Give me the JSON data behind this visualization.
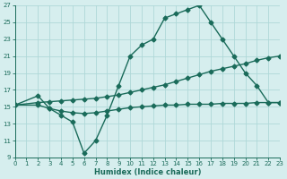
{
  "line1_x": [
    0,
    2,
    3,
    4,
    5,
    6,
    7,
    8,
    9,
    10,
    11,
    12,
    13,
    14,
    15,
    16,
    17,
    18,
    19,
    20,
    21,
    22,
    23
  ],
  "line1_y": [
    15.2,
    16.3,
    14.8,
    14.0,
    13.2,
    9.5,
    11.0,
    14.0,
    17.5,
    21.0,
    22.3,
    23.0,
    25.5,
    26.0,
    26.5,
    27.0,
    25.0,
    23.0,
    21.0,
    19.0,
    17.5,
    15.5,
    15.5
  ],
  "line2_x": [
    0,
    2,
    3,
    4,
    5,
    6,
    7,
    8,
    9,
    10,
    11,
    12,
    13,
    14,
    15,
    16,
    17,
    18,
    19,
    20,
    21,
    22,
    23
  ],
  "line2_y": [
    15.2,
    15.5,
    15.6,
    15.7,
    15.8,
    15.9,
    16.0,
    16.2,
    16.4,
    16.7,
    17.0,
    17.3,
    17.6,
    18.0,
    18.4,
    18.8,
    19.2,
    19.5,
    19.8,
    20.1,
    20.5,
    20.8,
    21.0
  ],
  "line3_x": [
    0,
    2,
    3,
    4,
    5,
    6,
    7,
    8,
    9,
    10,
    11,
    12,
    13,
    14,
    15,
    16,
    17,
    18,
    19,
    20,
    21,
    22,
    23
  ],
  "line3_y": [
    15.2,
    15.2,
    14.8,
    14.5,
    14.3,
    14.2,
    14.3,
    14.5,
    14.7,
    14.9,
    15.0,
    15.1,
    15.2,
    15.2,
    15.3,
    15.3,
    15.3,
    15.4,
    15.4,
    15.4,
    15.5,
    15.5,
    15.5
  ],
  "line_color": "#1a6b5a",
  "bg_color": "#d6eeee",
  "grid_color": "#afd8d8",
  "xlabel": "Humidex (Indice chaleur)",
  "xlim": [
    0,
    23
  ],
  "ylim": [
    9,
    27
  ],
  "xticks": [
    0,
    1,
    2,
    3,
    4,
    5,
    6,
    7,
    8,
    9,
    10,
    11,
    12,
    13,
    14,
    15,
    16,
    17,
    18,
    19,
    20,
    21,
    22,
    23
  ],
  "yticks": [
    9,
    11,
    13,
    15,
    17,
    19,
    21,
    23,
    25,
    27
  ],
  "marker": "D",
  "markersize": 2.5,
  "linewidth": 1.0
}
